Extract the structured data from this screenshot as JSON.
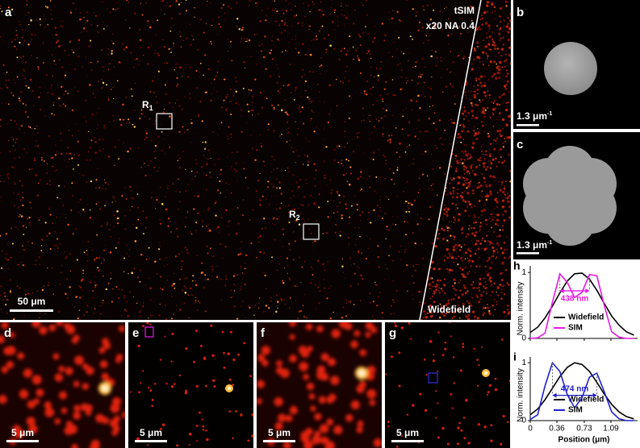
{
  "panels": {
    "a": {
      "label": "a",
      "method": "tSIM",
      "objective": "x20 NA 0.4",
      "regions": [
        {
          "name": "R",
          "index": "1"
        },
        {
          "name": "R",
          "index": "2"
        }
      ],
      "scale_bar": "50 μm",
      "side_label": "Widefield"
    },
    "b": {
      "label": "b",
      "scale_bar": "1.3 μm",
      "scale_bar_exponent": "-1"
    },
    "c": {
      "label": "c",
      "scale_bar": "1.3 μm",
      "scale_bar_exponent": "-1"
    },
    "d": {
      "label": "d",
      "scale_bar": "5 μm"
    },
    "e": {
      "label": "e",
      "scale_bar": "5 μm"
    },
    "f": {
      "label": "f",
      "scale_bar": "5 μm"
    },
    "g": {
      "label": "g",
      "scale_bar": "5 μm"
    }
  },
  "chart_data": [
    {
      "type": "line",
      "label": "h",
      "ylabel": "Norm. intensity",
      "annotation": "438 nm",
      "x": [
        0,
        0.1,
        0.2,
        0.3,
        0.4,
        0.5,
        0.6,
        0.7,
        0.8,
        0.9,
        1.0,
        1.1,
        1.2,
        1.3,
        1.4
      ],
      "series": [
        {
          "name": "Widefield",
          "color": "#000000",
          "values": [
            0.09,
            0.17,
            0.31,
            0.49,
            0.69,
            0.87,
            0.98,
            0.99,
            0.9,
            0.73,
            0.53,
            0.34,
            0.2,
            0.1,
            0.05
          ]
        },
        {
          "name": "SIM",
          "color": "#e619e6",
          "values": [
            0,
            0.01,
            0.08,
            0.55,
            0.98,
            0.85,
            0.62,
            0.7,
            0.97,
            0.95,
            0.5,
            0.1,
            0.02,
            0,
            0
          ]
        }
      ],
      "xlim": [
        0,
        1.45
      ],
      "ylim": [
        0,
        1.1
      ],
      "xticks": [
        0,
        0.36,
        0.73,
        1.09
      ],
      "yticks": [
        0,
        1
      ]
    },
    {
      "type": "line",
      "label": "i",
      "ylabel": "Norm. intensity",
      "xlabel": "Position (μm)",
      "annotation": "474 nm",
      "x": [
        0,
        0.1,
        0.2,
        0.3,
        0.4,
        0.5,
        0.6,
        0.7,
        0.8,
        0.9,
        1.0,
        1.1,
        1.2,
        1.3,
        1.4
      ],
      "series": [
        {
          "name": "Widefield",
          "color": "#000000",
          "values": [
            0.1,
            0.2,
            0.36,
            0.56,
            0.76,
            0.92,
            1.0,
            0.97,
            0.85,
            0.66,
            0.46,
            0.28,
            0.15,
            0.07,
            0.03
          ]
        },
        {
          "name": "SIM",
          "color": "#2020d0",
          "values": [
            0.02,
            0.1,
            0.6,
            1.0,
            0.85,
            0.45,
            0.22,
            0.4,
            0.75,
            0.82,
            0.5,
            0.15,
            0.03,
            0,
            0
          ]
        }
      ],
      "xlim": [
        0,
        1.45
      ],
      "ylim": [
        0,
        1.1
      ],
      "xticks": [
        0,
        0.36,
        0.73,
        1.09
      ],
      "yticks": [
        0,
        1
      ]
    }
  ]
}
